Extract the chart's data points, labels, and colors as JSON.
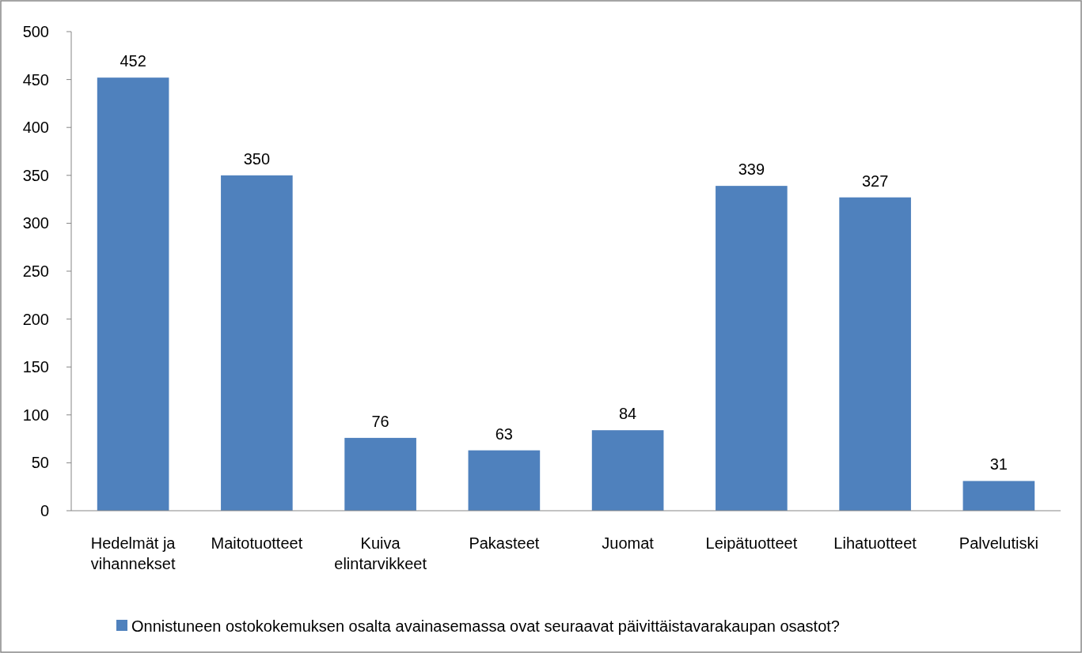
{
  "chart_data": {
    "type": "bar",
    "categories": [
      "Hedelmät ja vihannekset",
      "Maitotuotteet",
      "Kuiva elintarvikkeet",
      "Pakasteet",
      "Juomat",
      "Leipätuotteet",
      "Lihatuotteet",
      "Palvelutiski"
    ],
    "series": [
      {
        "name": "Onnistuneen ostokokemuksen osalta avainasemassa ovat seuraavat päivittäistavarakaupan osastot?",
        "color": "#4f81bd",
        "values": [
          452,
          350,
          76,
          63,
          84,
          339,
          327,
          31
        ]
      }
    ],
    "ylim": [
      0,
      500
    ],
    "yticks": [
      0,
      50,
      100,
      150,
      200,
      250,
      300,
      350,
      400,
      450,
      500
    ],
    "data_labels": true,
    "grid": false,
    "legend": "bottom"
  }
}
